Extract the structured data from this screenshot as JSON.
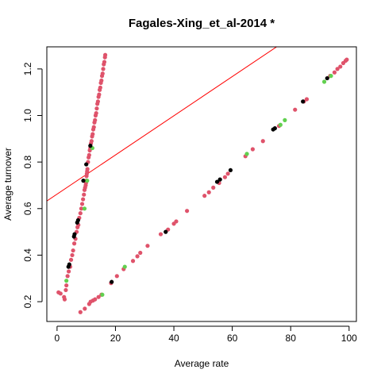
{
  "chart_data": {
    "type": "scatter",
    "title": "Fagales-Xing_et_al-2014 *",
    "xlabel": "Average rate",
    "ylabel": "Average turnover",
    "xlim": [
      -3.5,
      102.5
    ],
    "ylim": [
      0.115,
      1.295
    ],
    "xticks": [
      "0",
      "20",
      "40",
      "60",
      "80",
      "100"
    ],
    "yticks": [
      "0.2",
      "0.4",
      "0.6",
      "0.8",
      "1.0",
      "1.2"
    ],
    "grid": false,
    "legend": "none",
    "colors": {
      "red": "#DF536B",
      "green": "#61D04F",
      "black": "#000000",
      "line": "#FF0000"
    },
    "reference_line": {
      "intercept": 0.662,
      "slope": 0.00842
    },
    "series": [
      {
        "color": "red",
        "points": [
          [
            0.5,
            0.24
          ],
          [
            1.2,
            0.235
          ],
          [
            2.4,
            0.22
          ],
          [
            2.6,
            0.21
          ],
          [
            3.0,
            0.25
          ],
          [
            3.2,
            0.27
          ],
          [
            3.6,
            0.31
          ],
          [
            4.0,
            0.33
          ],
          [
            4.5,
            0.35
          ],
          [
            4.8,
            0.38
          ],
          [
            5.2,
            0.4
          ],
          [
            5.5,
            0.42
          ],
          [
            5.9,
            0.45
          ],
          [
            6.3,
            0.47
          ],
          [
            6.7,
            0.5
          ],
          [
            7.0,
            0.52
          ],
          [
            7.3,
            0.53
          ],
          [
            7.6,
            0.56
          ],
          [
            8.0,
            0.58
          ],
          [
            8.3,
            0.6
          ],
          [
            8.6,
            0.62
          ],
          [
            8.9,
            0.64
          ],
          [
            9.2,
            0.66
          ],
          [
            9.4,
            0.68
          ],
          [
            9.6,
            0.69
          ],
          [
            9.8,
            0.7
          ],
          [
            9.9,
            0.71
          ],
          [
            10.0,
            0.72
          ],
          [
            10.1,
            0.74
          ],
          [
            10.2,
            0.75
          ],
          [
            10.3,
            0.76
          ],
          [
            10.4,
            0.77
          ],
          [
            10.6,
            0.8
          ],
          [
            10.8,
            0.82
          ],
          [
            11.0,
            0.83
          ],
          [
            11.2,
            0.85
          ],
          [
            11.4,
            0.86
          ],
          [
            11.6,
            0.88
          ],
          [
            11.8,
            0.89
          ],
          [
            12.0,
            0.91
          ],
          [
            12.2,
            0.92
          ],
          [
            12.4,
            0.94
          ],
          [
            12.6,
            0.95
          ],
          [
            12.8,
            0.97
          ],
          [
            13.0,
            0.98
          ],
          [
            13.2,
            1.0
          ],
          [
            13.4,
            1.01
          ],
          [
            13.6,
            1.03
          ],
          [
            13.8,
            1.05
          ],
          [
            14.0,
            1.06
          ],
          [
            14.2,
            1.08
          ],
          [
            14.4,
            1.09
          ],
          [
            14.6,
            1.11
          ],
          [
            14.8,
            1.12
          ],
          [
            15.0,
            1.14
          ],
          [
            15.2,
            1.15
          ],
          [
            15.4,
            1.17
          ],
          [
            15.6,
            1.18
          ],
          [
            15.8,
            1.2
          ],
          [
            16.0,
            1.22
          ],
          [
            16.2,
            1.23
          ],
          [
            16.4,
            1.25
          ],
          [
            16.5,
            1.26
          ],
          [
            8.0,
            0.155
          ],
          [
            9.5,
            0.17
          ],
          [
            11.0,
            0.19
          ],
          [
            11.5,
            0.2
          ],
          [
            12.3,
            0.205
          ],
          [
            13.0,
            0.21
          ],
          [
            14.2,
            0.22
          ],
          [
            15.2,
            0.23
          ],
          [
            18.5,
            0.28
          ],
          [
            20.5,
            0.31
          ],
          [
            22.8,
            0.34
          ],
          [
            26.0,
            0.375
          ],
          [
            27.5,
            0.395
          ],
          [
            28.5,
            0.41
          ],
          [
            31.0,
            0.44
          ],
          [
            35.5,
            0.49
          ],
          [
            38.0,
            0.51
          ],
          [
            40.0,
            0.535
          ],
          [
            40.8,
            0.545
          ],
          [
            44.5,
            0.59
          ],
          [
            50.5,
            0.655
          ],
          [
            52.0,
            0.67
          ],
          [
            53.5,
            0.69
          ],
          [
            55.5,
            0.71
          ],
          [
            57.5,
            0.735
          ],
          [
            58.5,
            0.75
          ],
          [
            64.5,
            0.825
          ],
          [
            67.0,
            0.855
          ],
          [
            70.5,
            0.89
          ],
          [
            76.0,
            0.955
          ],
          [
            81.5,
            1.025
          ],
          [
            84.5,
            1.06
          ],
          [
            85.5,
            1.07
          ],
          [
            93.5,
            1.17
          ],
          [
            95.0,
            1.185
          ],
          [
            96.0,
            1.2
          ],
          [
            97.0,
            1.21
          ],
          [
            98.0,
            1.225
          ],
          [
            98.8,
            1.235
          ],
          [
            99.2,
            1.24
          ]
        ]
      },
      {
        "color": "green",
        "points": [
          [
            3.2,
            0.29
          ],
          [
            9.4,
            0.6
          ],
          [
            10.3,
            0.72
          ],
          [
            12.1,
            0.86
          ],
          [
            15.5,
            0.23
          ],
          [
            23.2,
            0.35
          ],
          [
            65.0,
            0.835
          ],
          [
            76.5,
            0.96
          ],
          [
            78.0,
            0.98
          ],
          [
            91.5,
            1.145
          ],
          [
            93.8,
            1.17
          ]
        ]
      },
      {
        "color": "black",
        "points": [
          [
            3.9,
            0.35
          ],
          [
            4.2,
            0.36
          ],
          [
            5.8,
            0.48
          ],
          [
            6.0,
            0.49
          ],
          [
            6.9,
            0.54
          ],
          [
            7.2,
            0.55
          ],
          [
            9.0,
            0.72
          ],
          [
            10.0,
            0.79
          ],
          [
            11.4,
            0.87
          ],
          [
            18.7,
            0.285
          ],
          [
            37.2,
            0.5
          ],
          [
            54.8,
            0.715
          ],
          [
            55.8,
            0.725
          ],
          [
            59.4,
            0.765
          ],
          [
            74.0,
            0.94
          ],
          [
            74.6,
            0.945
          ],
          [
            84.2,
            1.06
          ],
          [
            92.5,
            1.16
          ]
        ]
      }
    ]
  }
}
